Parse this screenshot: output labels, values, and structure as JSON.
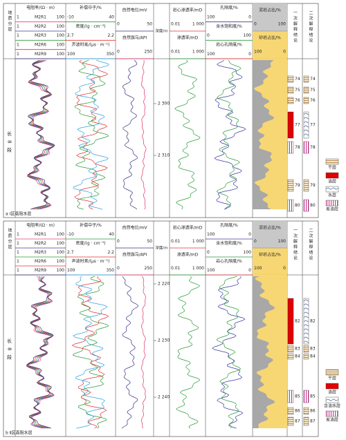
{
  "header": {
    "geology": "地质分层",
    "depth": "深度/m",
    "conclusion1": "一次解释结论",
    "conclusion2": "二次解释结论",
    "tracks": [
      [
        {
          "label": "电阻率/(Ω · m)"
        },
        {
          "label": "M2R1",
          "scale": [
            "1",
            "100"
          ],
          "color": "#e0407a"
        },
        {
          "label": "M2R2",
          "scale": [
            "1",
            "100"
          ],
          "color": "#3a3aa0"
        },
        {
          "label": "M2R3",
          "scale": [
            "1",
            "100"
          ],
          "color": "#2a9a3a"
        },
        {
          "label": "M2R6",
          "scale": [
            "1",
            "100"
          ],
          "color": "#e03030"
        },
        {
          "label": "M2R9",
          "scale": [
            "1",
            "100"
          ],
          "color": "#303080"
        }
      ],
      [
        {
          "label": "补偿中子/%"
        },
        {
          "scale": [
            "-10",
            "40"
          ],
          "color": "#2a9a3a"
        },
        {
          "label": "密度/(g · cm⁻³)"
        },
        {
          "scale": [
            "2.7",
            "2.2"
          ],
          "color": "#e03030"
        },
        {
          "label": "声波时差/(μs · m⁻¹)"
        },
        {
          "scale": [
            "100",
            "350"
          ],
          "color": "#30a0e0"
        }
      ],
      [
        {
          "label": "自然电位/mV"
        },
        {
          "scale": [
            "0",
            "50"
          ],
          "color": "#303080"
        },
        {
          "label": "自然伽马/API"
        },
        {
          "scale": [
            "0",
            "250"
          ],
          "color": "#e03060"
        }
      ],
      [
        {
          "label": "岩心渗透率/mD"
        },
        {
          "scale": [
            "0.01",
            "1 000"
          ],
          "color": "#e03030"
        },
        {
          "label": "渗透率/mD"
        },
        {
          "scale": [
            "0.01",
            "1 000"
          ],
          "color": "#2a9a3a"
        }
      ],
      [
        {
          "label": "孔隙度/%"
        },
        {
          "scale": [
            "100",
            "0"
          ],
          "color": "#3a3aa0"
        },
        {
          "label": "含水饱和度/%"
        },
        {
          "scale": [
            "0",
            "100"
          ],
          "color": "#2a9a3a"
        },
        {
          "label": "岩心孔隙度/%"
        },
        {
          "scale": [
            "100",
            "0"
          ],
          "color": "#e03030"
        }
      ],
      [
        {
          "label": "泥岩占比/%"
        },
        {
          "scale": [
            "0",
            "100"
          ],
          "color": "#999999"
        },
        {
          "label": "砂岩占比/%"
        },
        {
          "scale": [
            "100",
            "0"
          ],
          "color": "#f2c94c"
        }
      ]
    ]
  },
  "panels": [
    {
      "label": "a Ⅰ区高阻水层",
      "zone": "长8段",
      "depths": [
        "2 300",
        "2 310"
      ],
      "conclusion1": [
        "74",
        "75",
        "76",
        "77",
        "78",
        "79",
        "80"
      ],
      "conclusion2": [
        "74",
        "75",
        "76",
        "77",
        "78",
        "79",
        "80"
      ],
      "legend": [
        "干层",
        "油层",
        "水层",
        "差油层"
      ]
    },
    {
      "label": "b Ⅱ区高阻水层",
      "zone": "长8段",
      "depths": [
        "2 220",
        "2 230",
        "2 240"
      ],
      "conclusion1": [
        "82",
        "83",
        "84",
        "85",
        "86",
        "87"
      ],
      "conclusion2": [
        "82",
        "83",
        "84",
        "85",
        "86",
        "87"
      ],
      "legend": [
        "干层",
        "油层",
        "含油水层",
        "差油层"
      ]
    }
  ]
}
